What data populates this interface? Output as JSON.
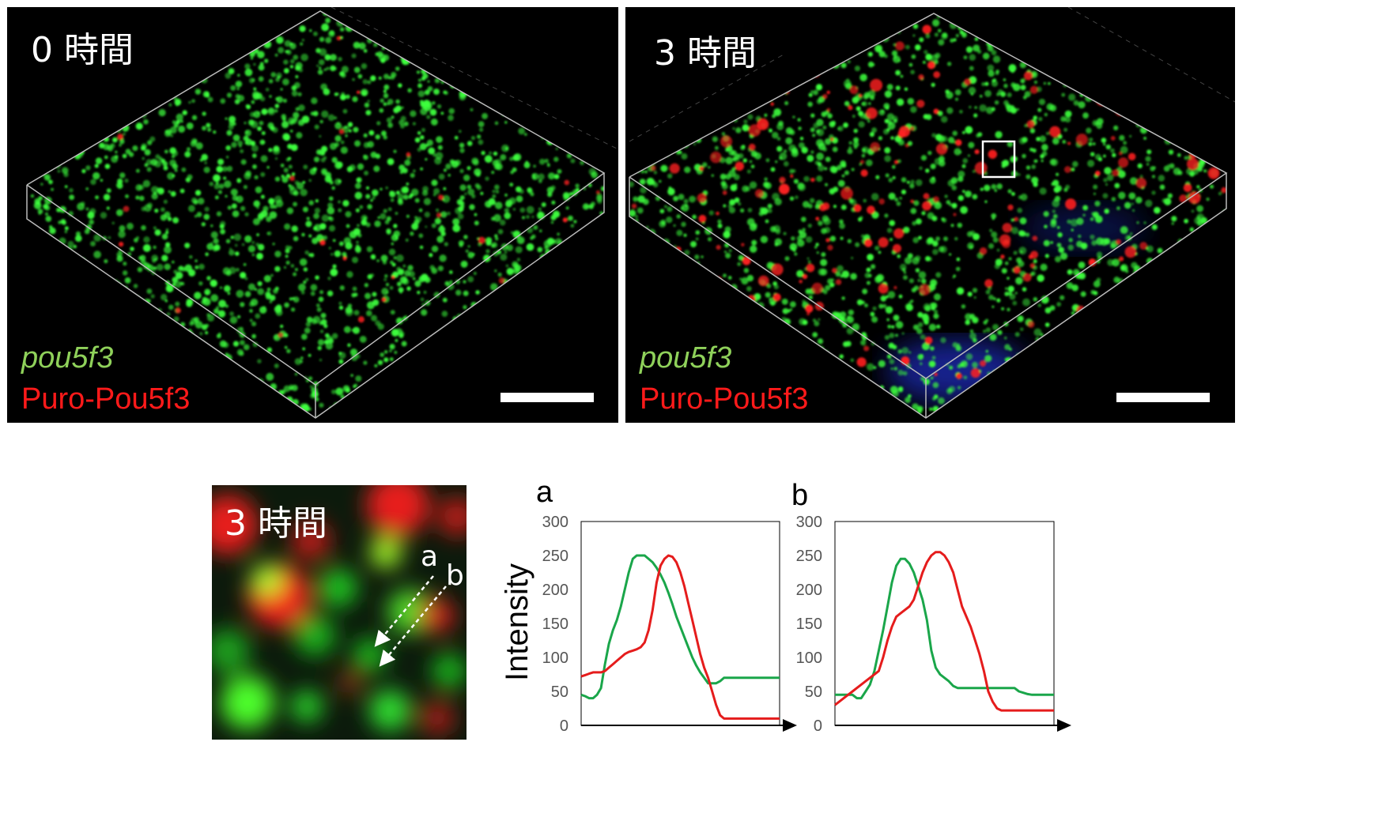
{
  "panels": {
    "top_left": {
      "time_label": "0 時間",
      "legend_green": "pou5f3",
      "legend_red": "Puro-Pou5f3"
    },
    "top_right": {
      "time_label": "3 時間",
      "legend_green": "pou5f3",
      "legend_red": "Puro-Pou5f3"
    },
    "inset": {
      "time_label": "3 時間",
      "line_a": "a",
      "line_b": "b"
    }
  },
  "colors": {
    "green": "#1aa64a",
    "red": "#e51c1c",
    "spot_green": "#3dff3d",
    "spot_red": "#ff2020"
  },
  "chart_data": [
    {
      "type": "line",
      "title": "a",
      "ylabel": "Intensity",
      "xlabel": "",
      "ylim": [
        0,
        300
      ],
      "yticks": [
        0,
        50,
        100,
        150,
        200,
        250,
        300
      ],
      "x": [
        0,
        2,
        4,
        6,
        8,
        10,
        12,
        14,
        16,
        18,
        20,
        22,
        24,
        26,
        28,
        30,
        32,
        34,
        36,
        38,
        40,
        42,
        44,
        46,
        48,
        50,
        52,
        54,
        56,
        58,
        60,
        62,
        64,
        66,
        68,
        70,
        72,
        74,
        76,
        78,
        80,
        82,
        84,
        86,
        88,
        90,
        92,
        94,
        96,
        98,
        100
      ],
      "series": [
        {
          "color": "green",
          "values": [
            45,
            43,
            40,
            40,
            45,
            55,
            90,
            120,
            140,
            155,
            175,
            200,
            225,
            245,
            250,
            250,
            250,
            245,
            240,
            232,
            222,
            210,
            195,
            178,
            160,
            145,
            130,
            115,
            100,
            88,
            78,
            70,
            62,
            62,
            62,
            65,
            70,
            70,
            70,
            70,
            70,
            70,
            70,
            70,
            70,
            70,
            70,
            70,
            70,
            70,
            70
          ]
        },
        {
          "color": "red",
          "values": [
            72,
            74,
            76,
            78,
            78,
            78,
            80,
            85,
            90,
            95,
            100,
            105,
            108,
            110,
            112,
            115,
            122,
            140,
            170,
            210,
            235,
            245,
            250,
            248,
            240,
            225,
            205,
            180,
            155,
            130,
            105,
            85,
            70,
            50,
            30,
            15,
            10,
            10,
            10,
            10,
            10,
            10,
            10,
            10,
            10,
            10,
            10,
            10,
            10,
            10,
            10
          ]
        }
      ]
    },
    {
      "type": "line",
      "title": "b",
      "ylabel": "",
      "xlabel": "",
      "ylim": [
        0,
        300
      ],
      "yticks": [
        0,
        50,
        100,
        150,
        200,
        250,
        300
      ],
      "x": [
        0,
        2,
        4,
        6,
        8,
        10,
        12,
        14,
        16,
        18,
        20,
        22,
        24,
        26,
        28,
        30,
        32,
        34,
        36,
        38,
        40,
        42,
        44,
        46,
        48,
        50,
        52,
        54,
        56,
        58,
        60,
        62,
        64,
        66,
        68,
        70,
        72,
        74,
        76,
        78,
        80,
        82,
        84,
        86,
        88,
        90,
        92,
        94,
        96,
        98,
        100
      ],
      "series": [
        {
          "color": "green",
          "values": [
            45,
            45,
            45,
            45,
            45,
            40,
            40,
            50,
            60,
            80,
            110,
            140,
            175,
            210,
            235,
            245,
            245,
            238,
            225,
            205,
            185,
            155,
            110,
            85,
            75,
            70,
            65,
            58,
            55,
            55,
            55,
            55,
            55,
            55,
            55,
            55,
            55,
            55,
            55,
            55,
            55,
            55,
            50,
            48,
            46,
            45,
            45,
            45,
            45,
            45,
            45
          ]
        },
        {
          "color": "red",
          "values": [
            30,
            35,
            40,
            45,
            50,
            55,
            60,
            65,
            70,
            75,
            80,
            100,
            125,
            145,
            160,
            165,
            170,
            175,
            185,
            205,
            225,
            240,
            250,
            255,
            255,
            250,
            240,
            225,
            200,
            175,
            160,
            145,
            125,
            105,
            80,
            50,
            35,
            25,
            22,
            22,
            22,
            22,
            22,
            22,
            22,
            22,
            22,
            22,
            22,
            22,
            22
          ]
        }
      ]
    }
  ]
}
